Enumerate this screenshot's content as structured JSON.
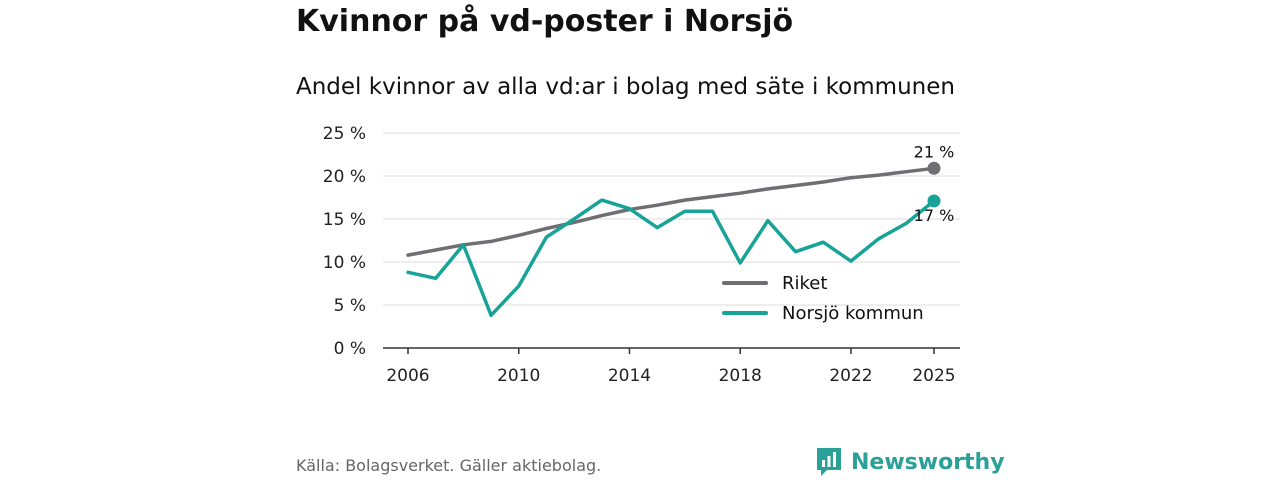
{
  "header": {
    "title": "Kvinnor på vd-poster i Norsjö",
    "subtitle": "Andel kvinnor av alla vd:ar i bolag med säte i kommunen"
  },
  "footer": {
    "source": "Källa: Bolagsverket. Gäller aktiebolag.",
    "brand": "Newsworthy",
    "brand_icon": "newsworthy-chart-bubble-icon"
  },
  "colors": {
    "riket": "#6e6e73",
    "norsjo": "#17a398",
    "grid": "#dddddd",
    "axis": "#333333",
    "brand": "#2aa198"
  },
  "chart_data": {
    "type": "line",
    "title": "Kvinnor på vd-poster i Norsjö",
    "subtitle": "Andel kvinnor av alla vd:ar i bolag med säte i kommunen",
    "xlabel": "",
    "ylabel": "",
    "x": [
      2006,
      2007,
      2008,
      2009,
      2010,
      2011,
      2012,
      2013,
      2014,
      2015,
      2016,
      2017,
      2018,
      2019,
      2020,
      2021,
      2022,
      2023,
      2024,
      2025
    ],
    "x_ticks": [
      "2006",
      "2010",
      "2014",
      "2018",
      "2022",
      "2025"
    ],
    "y_ticks": [
      "0 %",
      "5 %",
      "10 %",
      "15 %",
      "20 %",
      "25 %"
    ],
    "ylim": [
      0,
      25
    ],
    "grid": true,
    "legend_position": "bottom-right",
    "series": [
      {
        "name": "Riket",
        "values": [
          10.8,
          11.4,
          12.0,
          12.4,
          13.1,
          13.9,
          14.6,
          15.4,
          16.1,
          16.6,
          17.2,
          17.6,
          18.0,
          18.5,
          18.9,
          19.3,
          19.8,
          20.1,
          20.5,
          20.9
        ],
        "end_label": "21 %"
      },
      {
        "name": "Norsjö kommun",
        "values": [
          8.8,
          8.1,
          12.0,
          3.8,
          7.2,
          12.9,
          15.0,
          17.2,
          16.2,
          14.0,
          15.9,
          15.9,
          9.9,
          14.8,
          11.2,
          12.3,
          10.1,
          12.7,
          14.5,
          17.1
        ],
        "end_label": "17 %"
      }
    ]
  }
}
